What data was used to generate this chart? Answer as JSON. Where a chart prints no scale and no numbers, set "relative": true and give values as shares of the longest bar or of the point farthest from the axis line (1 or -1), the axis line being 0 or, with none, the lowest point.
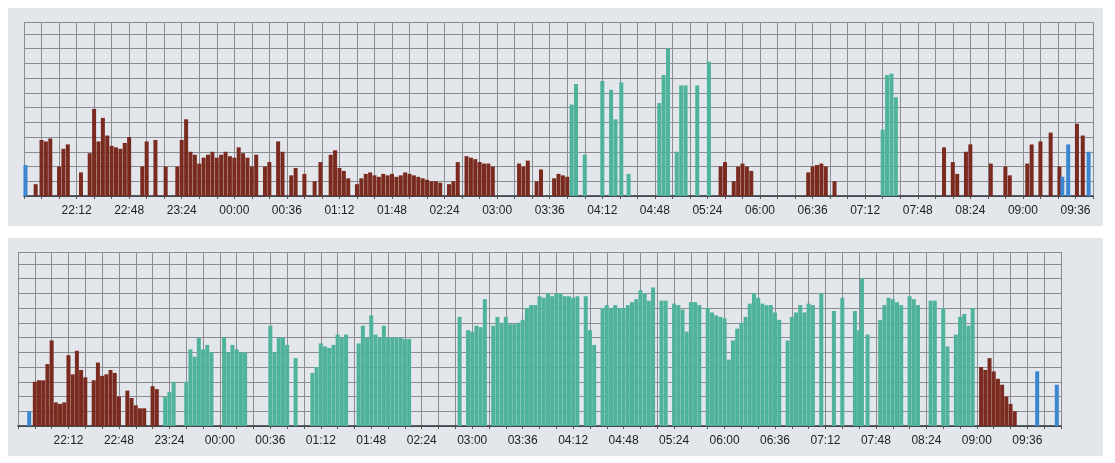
{
  "chart_data": [
    {
      "type": "bar",
      "relative": true,
      "grid": true,
      "xlim": [
        "2000-01-01T21:36",
        "2000-01-02T09:48"
      ],
      "xticks": [
        {
          "value": "2000-01-01T21:36",
          "label": null
        },
        {
          "value": "2000-01-01T21:48",
          "label": null
        },
        {
          "value": "2000-01-01T22:00",
          "label": null
        },
        {
          "value": "2000-01-01T22:12",
          "label": "22:12"
        },
        {
          "value": "2000-01-01T22:24",
          "label": null
        },
        {
          "value": "2000-01-01T22:36",
          "label": null
        },
        {
          "value": "2000-01-01T22:48",
          "label": "22:48"
        },
        {
          "value": "2000-01-01T23:00",
          "label": null
        },
        {
          "value": "2000-01-01T23:12",
          "label": null
        },
        {
          "value": "2000-01-01T23:24",
          "label": "23:24"
        },
        {
          "value": "2000-01-01T23:36",
          "label": null
        },
        {
          "value": "2000-01-01T23:48",
          "label": null
        },
        {
          "value": "2000-01-02T00:00",
          "label": "00:00"
        },
        {
          "value": "2000-01-02T00:12",
          "label": null
        },
        {
          "value": "2000-01-02T00:24",
          "label": null
        },
        {
          "value": "2000-01-02T00:36",
          "label": "00:36"
        },
        {
          "value": "2000-01-02T00:48",
          "label": null
        },
        {
          "value": "2000-01-02T01:00",
          "label": null
        },
        {
          "value": "2000-01-02T01:12",
          "label": "01:12"
        },
        {
          "value": "2000-01-02T01:24",
          "label": null
        },
        {
          "value": "2000-01-02T01:36",
          "label": null
        },
        {
          "value": "2000-01-02T01:48",
          "label": "01:48"
        },
        {
          "value": "2000-01-02T02:00",
          "label": null
        },
        {
          "value": "2000-01-02T02:12",
          "label": null
        },
        {
          "value": "2000-01-02T02:24",
          "label": "02:24"
        },
        {
          "value": "2000-01-02T02:36",
          "label": null
        },
        {
          "value": "2000-01-02T02:48",
          "label": null
        },
        {
          "value": "2000-01-02T03:00",
          "label": "03:00"
        },
        {
          "value": "2000-01-02T03:12",
          "label": null
        },
        {
          "value": "2000-01-02T03:24",
          "label": null
        },
        {
          "value": "2000-01-02T03:36",
          "label": "03:36"
        },
        {
          "value": "2000-01-02T03:48",
          "label": null
        },
        {
          "value": "2000-01-02T04:00",
          "label": null
        },
        {
          "value": "2000-01-02T04:12",
          "label": "04:12"
        },
        {
          "value": "2000-01-02T04:24",
          "label": null
        },
        {
          "value": "2000-01-02T04:36",
          "label": null
        },
        {
          "value": "2000-01-02T04:48",
          "label": "04:48"
        },
        {
          "value": "2000-01-02T05:00",
          "label": null
        },
        {
          "value": "2000-01-02T05:12",
          "label": null
        },
        {
          "value": "2000-01-02T05:24",
          "label": "05:24"
        },
        {
          "value": "2000-01-02T05:36",
          "label": null
        },
        {
          "value": "2000-01-02T05:48",
          "label": null
        },
        {
          "value": "2000-01-02T06:00",
          "label": "06:00"
        },
        {
          "value": "2000-01-02T06:12",
          "label": null
        },
        {
          "value": "2000-01-02T06:24",
          "label": null
        },
        {
          "value": "2000-01-02T06:36",
          "label": "06:36"
        },
        {
          "value": "2000-01-02T06:48",
          "label": null
        },
        {
          "value": "2000-01-02T07:00",
          "label": null
        },
        {
          "value": "2000-01-02T07:12",
          "label": "07:12"
        },
        {
          "value": "2000-01-02T07:24",
          "label": null
        },
        {
          "value": "2000-01-02T07:36",
          "label": null
        },
        {
          "value": "2000-01-02T07:48",
          "label": "07:48"
        },
        {
          "value": "2000-01-02T08:00",
          "label": null
        },
        {
          "value": "2000-01-02T08:12",
          "label": null
        },
        {
          "value": "2000-01-02T08:24",
          "label": "08:24"
        },
        {
          "value": "2000-01-02T08:36",
          "label": null
        },
        {
          "value": "2000-01-02T08:48",
          "label": null
        },
        {
          "value": "2000-01-02T09:00",
          "label": "09:00"
        },
        {
          "value": "2000-01-02T09:12",
          "label": null
        },
        {
          "value": "2000-01-02T09:24",
          "label": null
        },
        {
          "value": "2000-01-02T09:36",
          "label": "09:36"
        },
        {
          "value": "2000-01-02T09:48",
          "label": null
        }
      ],
      "series": [
        {
          "color": "#7a2a1e",
          "x": [
            "2000-01-01T21:44",
            "2000-01-01T21:48",
            "2000-01-01T21:51",
            "2000-01-01T21:54",
            "2000-01-01T22:00",
            "2000-01-01T22:03",
            "2000-01-01T22:06",
            "2000-01-01T22:15",
            "2000-01-01T22:21",
            "2000-01-01T22:24",
            "2000-01-01T22:27",
            "2000-01-01T22:30",
            "2000-01-01T22:33",
            "2000-01-01T22:36",
            "2000-01-01T22:39",
            "2000-01-01T22:42",
            "2000-01-01T22:45",
            "2000-01-01T22:48",
            "2000-01-01T22:57",
            "2000-01-01T23:00",
            "2000-01-01T23:06",
            "2000-01-01T23:13",
            "2000-01-01T23:21",
            "2000-01-01T23:24",
            "2000-01-01T23:27",
            "2000-01-01T23:30",
            "2000-01-01T23:33",
            "2000-01-01T23:36",
            "2000-01-01T23:39",
            "2000-01-01T23:42",
            "2000-01-01T23:45",
            "2000-01-01T23:48",
            "2000-01-01T23:51",
            "2000-01-01T23:54",
            "2000-01-01T23:57",
            "2000-01-02T00:00",
            "2000-01-02T00:03",
            "2000-01-02T00:06",
            "2000-01-02T00:09",
            "2000-01-02T00:12",
            "2000-01-02T00:15",
            "2000-01-02T00:21",
            "2000-01-02T00:24",
            "2000-01-02T00:30",
            "2000-01-02T00:33",
            "2000-01-02T00:39",
            "2000-01-02T00:42",
            "2000-01-02T00:48",
            "2000-01-02T00:55",
            "2000-01-02T00:59",
            "2000-01-02T01:06",
            "2000-01-02T01:09",
            "2000-01-02T01:12",
            "2000-01-02T01:15",
            "2000-01-02T01:18",
            "2000-01-02T01:24",
            "2000-01-02T01:27",
            "2000-01-02T01:30",
            "2000-01-02T01:33",
            "2000-01-02T01:36",
            "2000-01-02T01:39",
            "2000-01-02T01:42",
            "2000-01-02T01:45",
            "2000-01-02T01:48",
            "2000-01-02T01:51",
            "2000-01-02T01:54",
            "2000-01-02T01:57",
            "2000-01-02T02:00",
            "2000-01-02T02:03",
            "2000-01-02T02:06",
            "2000-01-02T02:09",
            "2000-01-02T02:12",
            "2000-01-02T02:15",
            "2000-01-02T02:18",
            "2000-01-02T02:21",
            "2000-01-02T02:27",
            "2000-01-02T02:30",
            "2000-01-02T02:33",
            "2000-01-02T02:39",
            "2000-01-02T02:42",
            "2000-01-02T02:45",
            "2000-01-02T02:48",
            "2000-01-02T02:51",
            "2000-01-02T02:54",
            "2000-01-02T02:57",
            "2000-01-02T03:15",
            "2000-01-02T03:18",
            "2000-01-02T03:21",
            "2000-01-02T03:27",
            "2000-01-02T03:30",
            "2000-01-02T03:39",
            "2000-01-02T03:42",
            "2000-01-02T03:45",
            "2000-01-02T03:48",
            "2000-01-02T05:33",
            "2000-01-02T05:36",
            "2000-01-02T05:42",
            "2000-01-02T05:45",
            "2000-01-02T05:48",
            "2000-01-02T05:51",
            "2000-01-02T05:54",
            "2000-01-02T06:33",
            "2000-01-02T06:36",
            "2000-01-02T06:39",
            "2000-01-02T06:42",
            "2000-01-02T06:45",
            "2000-01-02T06:51",
            "2000-01-02T08:06",
            "2000-01-02T08:12",
            "2000-01-02T08:15",
            "2000-01-02T08:21",
            "2000-01-02T08:24",
            "2000-01-02T08:38",
            "2000-01-02T08:48",
            "2000-01-02T08:51",
            "2000-01-02T09:03",
            "2000-01-02T09:06",
            "2000-01-02T09:12",
            "2000-01-02T09:19",
            "2000-01-02T09:25",
            "2000-01-02T09:37",
            "2000-01-02T09:41"
          ],
          "values": [
            0.08,
            0.38,
            0.37,
            0.39,
            0.2,
            0.32,
            0.35,
            0.16,
            0.29,
            0.59,
            0.37,
            0.53,
            0.41,
            0.34,
            0.33,
            0.32,
            0.36,
            0.4,
            0.2,
            0.37,
            0.38,
            0.2,
            0.2,
            0.38,
            0.52,
            0.3,
            0.28,
            0.22,
            0.26,
            0.28,
            0.3,
            0.26,
            0.28,
            0.3,
            0.27,
            0.26,
            0.33,
            0.29,
            0.26,
            0.2,
            0.28,
            0.2,
            0.23,
            0.37,
            0.3,
            0.14,
            0.19,
            0.15,
            0.1,
            0.23,
            0.28,
            0.31,
            0.19,
            0.17,
            0.12,
            0.08,
            0.12,
            0.15,
            0.16,
            0.14,
            0.13,
            0.15,
            0.14,
            0.15,
            0.13,
            0.14,
            0.16,
            0.15,
            0.14,
            0.13,
            0.12,
            0.11,
            0.1,
            0.1,
            0.09,
            0.08,
            0.1,
            0.23,
            0.27,
            0.26,
            0.25,
            0.23,
            0.22,
            0.22,
            0.2,
            0.22,
            0.2,
            0.24,
            0.1,
            0.18,
            0.12,
            0.15,
            0.14,
            0.13,
            0.2,
            0.23,
            0.1,
            0.2,
            0.22,
            0.2,
            0.17,
            0.16,
            0.2,
            0.21,
            0.22,
            0.2,
            0.1,
            0.33,
            0.23,
            0.15,
            0.3,
            0.35,
            0.22,
            0.2,
            0.14,
            0.22,
            0.35,
            0.37,
            0.43,
            0.2,
            0.49,
            0.41
          ]
        },
        {
          "color": "#4fb39b",
          "x": [
            "2000-01-02T03:51",
            "2000-01-02T03:54",
            "2000-01-02T04:00",
            "2000-01-02T04:12",
            "2000-01-02T04:18",
            "2000-01-02T04:21",
            "2000-01-02T04:25",
            "2000-01-02T04:30",
            "2000-01-02T04:51",
            "2000-01-02T04:54",
            "2000-01-02T04:57",
            "2000-01-02T05:03",
            "2000-01-02T05:06",
            "2000-01-02T05:09",
            "2000-01-02T05:17",
            "2000-01-02T05:25",
            "2000-01-02T07:24",
            "2000-01-02T07:27",
            "2000-01-02T07:30",
            "2000-01-02T07:33"
          ],
          "values": [
            0.62,
            0.76,
            0.28,
            0.78,
            0.72,
            0.52,
            0.77,
            0.15,
            0.63,
            0.82,
            1.0,
            0.3,
            0.75,
            0.75,
            0.75,
            0.91,
            0.45,
            0.82,
            0.83,
            0.67
          ]
        },
        {
          "color": "#3a86d0",
          "x": [
            "2000-01-01T21:37",
            "2000-01-02T09:27",
            "2000-01-02T09:31",
            "2000-01-02T09:45"
          ],
          "values": [
            0.21,
            0.13,
            0.35,
            0.3
          ]
        }
      ]
    },
    {
      "type": "bar",
      "relative": true,
      "grid": true,
      "xlim": [
        "2000-01-01T21:36",
        "2000-01-02T10:00"
      ],
      "xticks": [
        {
          "value": "2000-01-01T21:36",
          "label": null
        },
        {
          "value": "2000-01-01T21:48",
          "label": null
        },
        {
          "value": "2000-01-01T22:00",
          "label": null
        },
        {
          "value": "2000-01-01T22:12",
          "label": "22:12"
        },
        {
          "value": "2000-01-01T22:24",
          "label": null
        },
        {
          "value": "2000-01-01T22:36",
          "label": null
        },
        {
          "value": "2000-01-01T22:48",
          "label": "22:48"
        },
        {
          "value": "2000-01-01T23:00",
          "label": null
        },
        {
          "value": "2000-01-01T23:12",
          "label": null
        },
        {
          "value": "2000-01-01T23:24",
          "label": "23:24"
        },
        {
          "value": "2000-01-01T23:36",
          "label": null
        },
        {
          "value": "2000-01-01T23:48",
          "label": null
        },
        {
          "value": "2000-01-02T00:00",
          "label": "00:00"
        },
        {
          "value": "2000-01-02T00:12",
          "label": null
        },
        {
          "value": "2000-01-02T00:24",
          "label": null
        },
        {
          "value": "2000-01-02T00:36",
          "label": "00:36"
        },
        {
          "value": "2000-01-02T00:48",
          "label": null
        },
        {
          "value": "2000-01-02T01:00",
          "label": null
        },
        {
          "value": "2000-01-02T01:12",
          "label": "01:12"
        },
        {
          "value": "2000-01-02T01:24",
          "label": null
        },
        {
          "value": "2000-01-02T01:36",
          "label": null
        },
        {
          "value": "2000-01-02T01:48",
          "label": "01:48"
        },
        {
          "value": "2000-01-02T02:00",
          "label": null
        },
        {
          "value": "2000-01-02T02:12",
          "label": null
        },
        {
          "value": "2000-01-02T02:24",
          "label": "02:24"
        },
        {
          "value": "2000-01-02T02:36",
          "label": null
        },
        {
          "value": "2000-01-02T02:48",
          "label": null
        },
        {
          "value": "2000-01-02T03:00",
          "label": "03:00"
        },
        {
          "value": "2000-01-02T03:12",
          "label": null
        },
        {
          "value": "2000-01-02T03:24",
          "label": null
        },
        {
          "value": "2000-01-02T03:36",
          "label": "03:36"
        },
        {
          "value": "2000-01-02T03:48",
          "label": null
        },
        {
          "value": "2000-01-02T04:00",
          "label": null
        },
        {
          "value": "2000-01-02T04:12",
          "label": "04:12"
        },
        {
          "value": "2000-01-02T04:24",
          "label": null
        },
        {
          "value": "2000-01-02T04:36",
          "label": null
        },
        {
          "value": "2000-01-02T04:48",
          "label": "04:48"
        },
        {
          "value": "2000-01-02T05:00",
          "label": null
        },
        {
          "value": "2000-01-02T05:12",
          "label": null
        },
        {
          "value": "2000-01-02T05:24",
          "label": "05:24"
        },
        {
          "value": "2000-01-02T05:36",
          "label": null
        },
        {
          "value": "2000-01-02T05:48",
          "label": null
        },
        {
          "value": "2000-01-02T06:00",
          "label": "06:00"
        },
        {
          "value": "2000-01-02T06:12",
          "label": null
        },
        {
          "value": "2000-01-02T06:24",
          "label": null
        },
        {
          "value": "2000-01-02T06:36",
          "label": "06:36"
        },
        {
          "value": "2000-01-02T06:48",
          "label": null
        },
        {
          "value": "2000-01-02T07:00",
          "label": null
        },
        {
          "value": "2000-01-02T07:12",
          "label": "07:12"
        },
        {
          "value": "2000-01-02T07:24",
          "label": null
        },
        {
          "value": "2000-01-02T07:36",
          "label": null
        },
        {
          "value": "2000-01-02T07:48",
          "label": "07:48"
        },
        {
          "value": "2000-01-02T08:00",
          "label": null
        },
        {
          "value": "2000-01-02T08:12",
          "label": null
        },
        {
          "value": "2000-01-02T08:24",
          "label": "08:24"
        },
        {
          "value": "2000-01-02T08:36",
          "label": null
        },
        {
          "value": "2000-01-02T08:48",
          "label": null
        },
        {
          "value": "2000-01-02T09:00",
          "label": "09:00"
        },
        {
          "value": "2000-01-02T09:12",
          "label": null
        },
        {
          "value": "2000-01-02T09:24",
          "label": null
        },
        {
          "value": "2000-01-02T09:36",
          "label": "09:36"
        },
        {
          "value": "2000-01-02T09:48",
          "label": null
        },
        {
          "value": "2000-01-02T10:00",
          "label": null
        }
      ],
      "series": [
        {
          "color": "#7a2a1e",
          "x": [
            "2000-01-01T21:48",
            "2000-01-01T21:51",
            "2000-01-01T21:54",
            "2000-01-01T21:57",
            "2000-01-01T22:00",
            "2000-01-01T22:03",
            "2000-01-01T22:06",
            "2000-01-01T22:09",
            "2000-01-01T22:12",
            "2000-01-01T22:15",
            "2000-01-01T22:18",
            "2000-01-01T22:21",
            "2000-01-01T22:24",
            "2000-01-01T22:30",
            "2000-01-01T22:33",
            "2000-01-01T22:36",
            "2000-01-01T22:39",
            "2000-01-01T22:42",
            "2000-01-01T22:45",
            "2000-01-01T22:48",
            "2000-01-01T22:54",
            "2000-01-01T22:57",
            "2000-01-01T23:00",
            "2000-01-01T23:03",
            "2000-01-01T23:06",
            "2000-01-01T23:12",
            "2000-01-01T23:15",
            "2000-01-02T09:03",
            "2000-01-02T09:06",
            "2000-01-02T09:09",
            "2000-01-02T09:12",
            "2000-01-02T09:15",
            "2000-01-02T09:18",
            "2000-01-02T09:21",
            "2000-01-02T09:24",
            "2000-01-02T09:27"
          ],
          "values": [
            0.3,
            0.31,
            0.31,
            0.42,
            0.58,
            0.16,
            0.15,
            0.16,
            0.48,
            0.35,
            0.51,
            0.38,
            0.33,
            0.31,
            0.43,
            0.34,
            0.35,
            0.38,
            0.36,
            0.2,
            0.24,
            0.19,
            0.14,
            0.12,
            0.12,
            0.27,
            0.25,
            0.4,
            0.38,
            0.46,
            0.37,
            0.32,
            0.28,
            0.2,
            0.15,
            0.1
          ]
        },
        {
          "color": "#4fb39b",
          "x": [
            "2000-01-01T23:21",
            "2000-01-01T23:24",
            "2000-01-01T23:27",
            "2000-01-01T23:36",
            "2000-01-01T23:39",
            "2000-01-01T23:42",
            "2000-01-01T23:45",
            "2000-01-01T23:48",
            "2000-01-01T23:51",
            "2000-01-01T23:54",
            "2000-01-02T00:03",
            "2000-01-02T00:06",
            "2000-01-02T00:09",
            "2000-01-02T00:12",
            "2000-01-02T00:15",
            "2000-01-02T00:18",
            "2000-01-02T00:36",
            "2000-01-02T00:39",
            "2000-01-02T00:42",
            "2000-01-02T00:45",
            "2000-01-02T00:48",
            "2000-01-02T00:54",
            "2000-01-02T01:06",
            "2000-01-02T01:09",
            "2000-01-02T01:12",
            "2000-01-02T01:15",
            "2000-01-02T01:18",
            "2000-01-02T01:21",
            "2000-01-02T01:24",
            "2000-01-02T01:27",
            "2000-01-02T01:30",
            "2000-01-02T01:39",
            "2000-01-02T01:42",
            "2000-01-02T01:45",
            "2000-01-02T01:48",
            "2000-01-02T01:51",
            "2000-01-02T01:54",
            "2000-01-02T01:57",
            "2000-01-02T02:00",
            "2000-01-02T02:03",
            "2000-01-02T02:06",
            "2000-01-02T02:09",
            "2000-01-02T02:12",
            "2000-01-02T02:15",
            "2000-01-02T02:51",
            "2000-01-02T02:57",
            "2000-01-02T03:00",
            "2000-01-02T03:03",
            "2000-01-02T03:06",
            "2000-01-02T03:09",
            "2000-01-02T03:15",
            "2000-01-02T03:18",
            "2000-01-02T03:21",
            "2000-01-02T03:24",
            "2000-01-02T03:27",
            "2000-01-02T03:30",
            "2000-01-02T03:33",
            "2000-01-02T03:36",
            "2000-01-02T03:39",
            "2000-01-02T03:42",
            "2000-01-02T03:45",
            "2000-01-02T03:48",
            "2000-01-02T03:51",
            "2000-01-02T03:54",
            "2000-01-02T03:57",
            "2000-01-02T04:00",
            "2000-01-02T04:03",
            "2000-01-02T04:06",
            "2000-01-02T04:09",
            "2000-01-02T04:12",
            "2000-01-02T04:15",
            "2000-01-02T04:21",
            "2000-01-02T04:24",
            "2000-01-02T04:27",
            "2000-01-02T04:33",
            "2000-01-02T04:36",
            "2000-01-02T04:39",
            "2000-01-02T04:42",
            "2000-01-02T04:45",
            "2000-01-02T04:48",
            "2000-01-02T04:51",
            "2000-01-02T04:54",
            "2000-01-02T04:57",
            "2000-01-02T05:00",
            "2000-01-02T05:03",
            "2000-01-02T05:06",
            "2000-01-02T05:09",
            "2000-01-02T05:15",
            "2000-01-02T05:18",
            "2000-01-02T05:24",
            "2000-01-02T05:27",
            "2000-01-02T05:30",
            "2000-01-02T05:33",
            "2000-01-02T05:36",
            "2000-01-02T05:39",
            "2000-01-02T05:42",
            "2000-01-02T05:48",
            "2000-01-02T05:51",
            "2000-01-02T05:54",
            "2000-01-02T05:57",
            "2000-01-02T06:00",
            "2000-01-02T06:03",
            "2000-01-02T06:06",
            "2000-01-02T06:09",
            "2000-01-02T06:12",
            "2000-01-02T06:15",
            "2000-01-02T06:18",
            "2000-01-02T06:21",
            "2000-01-02T06:24",
            "2000-01-02T06:27",
            "2000-01-02T06:30",
            "2000-01-02T06:33",
            "2000-01-02T06:36",
            "2000-01-02T06:39",
            "2000-01-02T06:45",
            "2000-01-02T06:48",
            "2000-01-02T06:51",
            "2000-01-02T06:54",
            "2000-01-02T06:57",
            "2000-01-02T07:00",
            "2000-01-02T07:03",
            "2000-01-02T07:09",
            "2000-01-02T07:18",
            "2000-01-02T07:24",
            "2000-01-02T07:33",
            "2000-01-02T07:36",
            "2000-01-02T07:38",
            "2000-01-02T07:42",
            "2000-01-02T07:51",
            "2000-01-02T07:54",
            "2000-01-02T07:57",
            "2000-01-02T08:00",
            "2000-01-02T08:03",
            "2000-01-02T08:06",
            "2000-01-02T08:12",
            "2000-01-02T08:15",
            "2000-01-02T08:18",
            "2000-01-02T08:27",
            "2000-01-02T08:30",
            "2000-01-02T08:36",
            "2000-01-02T08:39",
            "2000-01-02T08:45",
            "2000-01-02T08:48",
            "2000-01-02T08:51",
            "2000-01-02T08:54",
            "2000-01-02T08:57"
          ],
          "values": [
            0.2,
            0.23,
            0.3,
            0.3,
            0.52,
            0.47,
            0.6,
            0.52,
            0.55,
            0.5,
            0.6,
            0.5,
            0.55,
            0.52,
            0.5,
            0.5,
            0.68,
            0.5,
            0.6,
            0.6,
            0.55,
            0.46,
            0.36,
            0.4,
            0.56,
            0.54,
            0.53,
            0.55,
            0.62,
            0.6,
            0.62,
            0.56,
            0.68,
            0.6,
            0.75,
            0.62,
            0.6,
            0.68,
            0.6,
            0.6,
            0.6,
            0.6,
            0.59,
            0.59,
            0.74,
            0.65,
            0.64,
            0.68,
            0.67,
            0.86,
            0.68,
            0.74,
            0.7,
            0.74,
            0.69,
            0.69,
            0.7,
            0.72,
            0.8,
            0.82,
            0.82,
            0.88,
            0.87,
            0.9,
            0.88,
            0.9,
            0.9,
            0.88,
            0.88,
            0.87,
            0.88,
            0.88,
            0.65,
            0.55,
            0.8,
            0.82,
            0.8,
            0.82,
            0.8,
            0.8,
            0.82,
            0.84,
            0.86,
            0.92,
            0.9,
            0.85,
            0.94,
            0.85,
            0.85,
            0.83,
            0.82,
            0.79,
            0.64,
            0.84,
            0.84,
            0.82,
            0.8,
            0.77,
            0.75,
            0.74,
            0.73,
            0.45,
            0.58,
            0.66,
            0.7,
            0.74,
            0.83,
            0.9,
            0.87,
            0.83,
            0.82,
            0.82,
            0.77,
            0.72,
            0.58,
            0.74,
            0.77,
            0.82,
            0.77,
            0.83,
            0.82,
            0.9,
            0.78,
            0.87,
            0.78,
            0.65,
            1.0,
            0.62,
            0.72,
            0.82,
            0.87,
            0.86,
            0.84,
            0.82,
            0.88,
            0.86,
            0.82,
            0.85,
            0.85,
            0.8,
            0.54,
            0.62,
            0.74,
            0.76,
            0.68,
            0.8
          ]
        },
        {
          "color": "#3a86d0",
          "x": [
            "2000-01-01T21:44",
            "2000-01-02T09:43",
            "2000-01-02T09:57"
          ],
          "values": [
            0.1,
            0.37,
            0.28
          ]
        }
      ]
    }
  ]
}
